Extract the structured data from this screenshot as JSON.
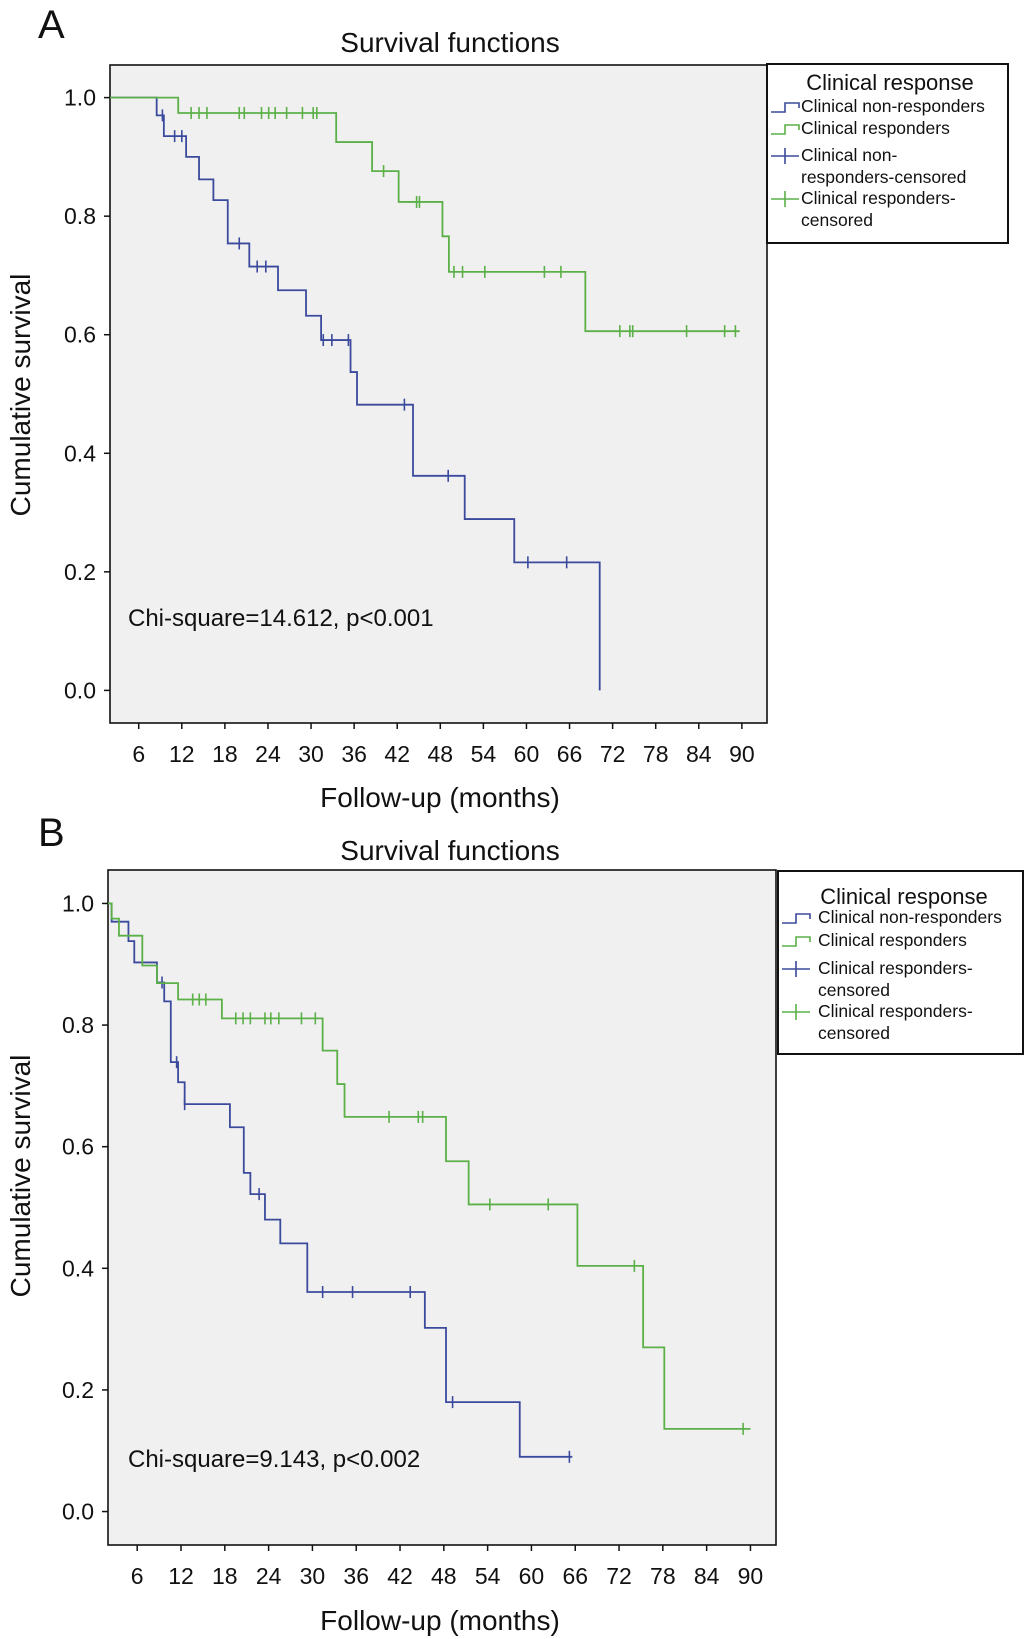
{
  "chart_data": [
    {
      "type": "line",
      "panel_label": "A",
      "title": "Survival functions",
      "xlabel": "Follow-up  (months)",
      "ylabel": "Cumulative survival",
      "xticks": [
        6,
        12,
        18,
        24,
        30,
        36,
        42,
        48,
        54,
        60,
        66,
        72,
        78,
        84,
        90
      ],
      "yticks": [
        0.0,
        0.2,
        0.4,
        0.6,
        0.8,
        1.0
      ],
      "ytick_labels": [
        "0.0",
        "0.2",
        "0.4",
        "0.6",
        "0.8",
        "1.0"
      ],
      "xlim": [
        2,
        93.5
      ],
      "ylim": [
        -0.055,
        1.055
      ],
      "grid": false,
      "plot_background": "#f0f0f0",
      "annotation": "Chi-square=14.612, p<0.001",
      "legend": {
        "placement": "right-top-outside",
        "title": "Clinical response",
        "entries": [
          {
            "lines": [
              "Clinical non-responders"
            ],
            "kind": "step",
            "color": "#3b4a9c"
          },
          {
            "lines": [
              "Clinical responders"
            ],
            "kind": "step",
            "color": "#5cb048"
          },
          {
            "lines": [
              "Clinical non-",
              "responders-censored"
            ],
            "kind": "censor",
            "color": "#3b4a9c"
          },
          {
            "lines": [
              "Clinical responders-",
              "censored"
            ],
            "kind": "censor",
            "color": "#5cb048"
          }
        ]
      },
      "series": [
        {
          "name": "Clinical non-responders",
          "color": "#3b4a9c",
          "steps": [
            [
              2,
              1.0
            ],
            [
              8.5,
              0.97
            ],
            [
              9.5,
              0.935
            ],
            [
              12.6,
              0.9
            ],
            [
              14.4,
              0.862
            ],
            [
              16.4,
              0.827
            ],
            [
              18.4,
              0.754
            ],
            [
              21.4,
              0.715
            ],
            [
              25.4,
              0.675
            ],
            [
              29.3,
              0.632
            ],
            [
              31.4,
              0.591
            ],
            [
              35.5,
              0.537
            ],
            [
              36.4,
              0.482
            ],
            [
              44.2,
              0.362
            ],
            [
              51.4,
              0.289
            ],
            [
              58.3,
              0.216
            ],
            [
              70.2,
              0.0
            ]
          ],
          "end": 70.2,
          "censored": [
            9.3,
            11,
            12,
            20,
            22.5,
            23.7,
            31.7,
            32.9,
            35.2,
            43,
            49.1,
            60.2,
            65.6
          ]
        },
        {
          "name": "Clinical responders",
          "color": "#5cb048",
          "steps": [
            [
              2,
              1.0
            ],
            [
              11.5,
              0.974
            ],
            [
              33.5,
              0.925
            ],
            [
              38.5,
              0.876
            ],
            [
              42.2,
              0.824
            ],
            [
              48.3,
              0.766
            ],
            [
              49.2,
              0.706
            ],
            [
              68.2,
              0.606
            ]
          ],
          "end": 89.7,
          "censored": [
            13.3,
            14.4,
            15.5,
            20.0,
            20.7,
            23.1,
            24.1,
            25.0,
            26.6,
            28.8,
            30.3,
            30.8,
            40.1,
            44.7,
            45.1,
            49.9,
            51.1,
            54.2,
            62.5,
            64.8,
            73,
            74.4,
            74.8,
            82.3,
            87.6,
            89.1
          ]
        }
      ]
    },
    {
      "type": "line",
      "panel_label": "B",
      "title": "Survival functions",
      "xlabel": "Follow-up (months)",
      "ylabel": "Cumulative survival",
      "xticks": [
        6,
        12,
        18,
        24,
        30,
        36,
        42,
        48,
        54,
        60,
        66,
        72,
        78,
        84,
        90
      ],
      "yticks": [
        0.0,
        0.2,
        0.4,
        0.6,
        0.8,
        1.0
      ],
      "ytick_labels": [
        "0.0",
        "0.2",
        "0.4",
        "0.6",
        "0.8",
        "1.0"
      ],
      "xlim": [
        2,
        93.5
      ],
      "ylim": [
        -0.055,
        1.055
      ],
      "grid": false,
      "plot_background": "#f0f0f0",
      "annotation": "Chi-square=9.143, p<0.002",
      "legend": {
        "placement": "right-top-outside",
        "title": "Clinical response",
        "entries": [
          {
            "lines": [
              "Clinical non-responders"
            ],
            "kind": "step",
            "color": "#3b4a9c"
          },
          {
            "lines": [
              "Clinical responders"
            ],
            "kind": "step",
            "color": "#5cb048"
          },
          {
            "lines": [
              "Clinical responders-",
              "censored"
            ],
            "kind": "censor",
            "color": "#3b4a9c"
          },
          {
            "lines": [
              "Clinical responders-",
              "censored"
            ],
            "kind": "censor",
            "color": "#5cb048"
          }
        ]
      },
      "series": [
        {
          "name": "Clinical non-responders",
          "color": "#3b4a9c",
          "steps": [
            [
              2,
              1.0
            ],
            [
              2.5,
              0.97
            ],
            [
              4.8,
              0.938
            ],
            [
              5.6,
              0.903
            ],
            [
              8.7,
              0.87
            ],
            [
              9.7,
              0.839
            ],
            [
              10.6,
              0.739
            ],
            [
              11.6,
              0.706
            ],
            [
              12.5,
              0.67
            ],
            [
              18.7,
              0.632
            ],
            [
              20.6,
              0.557
            ],
            [
              21.5,
              0.522
            ],
            [
              23.5,
              0.48
            ],
            [
              25.6,
              0.441
            ],
            [
              29.3,
              0.361
            ],
            [
              45.4,
              0.302
            ],
            [
              48.3,
              0.18
            ],
            [
              58.4,
              0.09
            ]
          ],
          "end": 65.6,
          "censored": [
            9.4,
            11.4,
            12.5,
            22.7,
            31.4,
            35.5,
            43.4,
            49.2,
            65.2
          ]
        },
        {
          "name": "Clinical responders",
          "color": "#5cb048",
          "steps": [
            [
              2,
              1.0
            ],
            [
              2.5,
              0.975
            ],
            [
              3.5,
              0.947
            ],
            [
              6.7,
              0.898
            ],
            [
              8.7,
              0.869
            ],
            [
              11.6,
              0.842
            ],
            [
              17.6,
              0.811
            ],
            [
              31.4,
              0.758
            ],
            [
              33.4,
              0.703
            ],
            [
              34.4,
              0.649
            ],
            [
              48.3,
              0.576
            ],
            [
              51.4,
              0.505
            ],
            [
              66.3,
              0.404
            ],
            [
              75.3,
              0.27
            ],
            [
              78.2,
              0.136
            ]
          ],
          "end": 90,
          "censored": [
            13.6,
            14.5,
            15.4,
            19.5,
            20.5,
            21.5,
            23.5,
            24.3,
            25.4,
            28.5,
            30.4,
            40.5,
            44.5,
            45.1,
            54.3,
            62.3,
            74.1,
            89
          ]
        }
      ]
    }
  ]
}
